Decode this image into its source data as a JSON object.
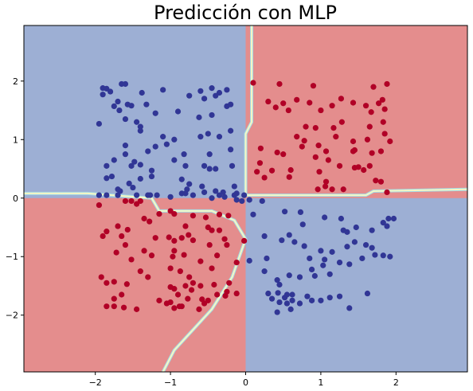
{
  "chart_data": {
    "type": "scatter",
    "title": "Predicción con MLP",
    "xlabel": "",
    "ylabel": "",
    "xlim": [
      -2.95,
      2.95
    ],
    "ylim": [
      -2.97,
      2.95
    ],
    "xticks": [
      -2,
      -1,
      0,
      1,
      2
    ],
    "yticks": [
      -2,
      -1,
      0,
      1,
      2
    ],
    "xtick_labels": [
      "−2",
      "−1",
      "0",
      "1",
      "2"
    ],
    "ytick_labels": [
      "−2",
      "−1",
      "0",
      "1",
      "2"
    ],
    "grid": false,
    "background_regions": {
      "red_class_region": [
        "x > 0 and y > 0 (top-right)",
        "x < 0 and y < 0 (bottom-left)"
      ],
      "blue_class_region": [
        "x < 0 and y > 0 (top-left)",
        "x > 0 and y < 0 (bottom-right)"
      ]
    },
    "colors": {
      "red_region": "#e48d8d",
      "blue_region": "#9dafd4",
      "red_point": "#b10026",
      "blue_point": "#313695",
      "boundary_light": "#f7f7c4",
      "boundary_cyan": "#a4dbe6"
    },
    "series": [
      {
        "name": "class_red",
        "points": [
          [
            0.1,
            1.97
          ],
          [
            0.45,
            1.95
          ],
          [
            0.9,
            1.92
          ],
          [
            1.7,
            1.9
          ],
          [
            1.88,
            1.95
          ],
          [
            0.3,
            1.65
          ],
          [
            0.5,
            1.62
          ],
          [
            0.68,
            1.68
          ],
          [
            0.85,
            1.63
          ],
          [
            1.27,
            1.7
          ],
          [
            1.43,
            1.63
          ],
          [
            1.6,
            1.58
          ],
          [
            1.77,
            1.62
          ],
          [
            1.82,
            1.68
          ],
          [
            0.4,
            1.55
          ],
          [
            0.57,
            1.5
          ],
          [
            1.0,
            1.5
          ],
          [
            1.15,
            1.58
          ],
          [
            1.67,
            1.47
          ],
          [
            1.85,
            1.52
          ],
          [
            1.28,
            1.3
          ],
          [
            0.8,
            1.22
          ],
          [
            0.93,
            1.2
          ],
          [
            1.17,
            1.2
          ],
          [
            1.65,
            1.22
          ],
          [
            1.83,
            1.3
          ],
          [
            0.68,
            1.05
          ],
          [
            0.78,
            0.98
          ],
          [
            1.2,
            1.05
          ],
          [
            1.62,
            1.0
          ],
          [
            1.85,
            1.1
          ],
          [
            1.92,
            0.97
          ],
          [
            0.75,
            0.88
          ],
          [
            0.97,
            0.9
          ],
          [
            1.43,
            0.97
          ],
          [
            0.2,
            0.85
          ],
          [
            0.42,
            0.78
          ],
          [
            0.5,
            0.75
          ],
          [
            1.07,
            0.8
          ],
          [
            1.43,
            0.8
          ],
          [
            1.45,
            0.82
          ],
          [
            1.68,
            0.77
          ],
          [
            1.8,
            0.8
          ],
          [
            0.93,
            0.7
          ],
          [
            1.1,
            0.65
          ],
          [
            0.19,
            0.6
          ],
          [
            1.25,
            0.55
          ],
          [
            1.45,
            0.52
          ],
          [
            1.65,
            0.55
          ],
          [
            1.5,
            0.53
          ],
          [
            1.57,
            0.48
          ],
          [
            0.15,
            0.45
          ],
          [
            0.35,
            0.47
          ],
          [
            0.6,
            0.48
          ],
          [
            0.98,
            0.45
          ],
          [
            0.25,
            0.35
          ],
          [
            0.58,
            0.36
          ],
          [
            1.07,
            0.28
          ],
          [
            1.73,
            0.3
          ],
          [
            1.8,
            0.28
          ],
          [
            1.06,
            0.2
          ],
          [
            0.96,
            0.15
          ],
          [
            1.15,
            0.15
          ],
          [
            1.3,
            0.15
          ],
          [
            1.88,
            0.1
          ],
          [
            -1.6,
            -0.05
          ],
          [
            -1.52,
            -0.05
          ],
          [
            -1.4,
            -0.05
          ],
          [
            -1.45,
            -0.1
          ],
          [
            -1.95,
            -0.12
          ],
          [
            -1.0,
            -0.22
          ],
          [
            -1.15,
            -0.27
          ],
          [
            -0.95,
            -0.27
          ],
          [
            -0.7,
            -0.3
          ],
          [
            -0.53,
            -0.33
          ],
          [
            -0.35,
            -0.28
          ],
          [
            -0.23,
            -0.3
          ],
          [
            -1.7,
            -0.48
          ],
          [
            -1.85,
            -0.57
          ],
          [
            -1.57,
            -0.54
          ],
          [
            -1.35,
            -0.35
          ],
          [
            -1.28,
            -0.4
          ],
          [
            -0.8,
            -0.48
          ],
          [
            -0.76,
            -0.63
          ],
          [
            -0.5,
            -0.5
          ],
          [
            -0.45,
            -0.55
          ],
          [
            -0.35,
            -0.55
          ],
          [
            -0.28,
            -0.7
          ],
          [
            -0.02,
            -0.73
          ],
          [
            -1.9,
            -0.65
          ],
          [
            -1.65,
            -0.65
          ],
          [
            -1.2,
            -0.68
          ],
          [
            -1.02,
            -0.67
          ],
          [
            -0.85,
            -0.68
          ],
          [
            -0.95,
            -0.73
          ],
          [
            -0.7,
            -0.72
          ],
          [
            -0.25,
            -0.8
          ],
          [
            -0.48,
            -0.8
          ],
          [
            -1.6,
            -0.8
          ],
          [
            -1.35,
            -0.9
          ],
          [
            -1.72,
            -0.93
          ],
          [
            -0.95,
            -0.9
          ],
          [
            -1.25,
            -0.98
          ],
          [
            -0.82,
            -0.97
          ],
          [
            -0.97,
            -1.0
          ],
          [
            -0.38,
            -0.98
          ],
          [
            -1.52,
            -1.05
          ],
          [
            -0.6,
            -1.08
          ],
          [
            -0.12,
            -1.1
          ],
          [
            -1.0,
            -1.2
          ],
          [
            -1.4,
            -1.25
          ],
          [
            -0.87,
            -1.25
          ],
          [
            -0.45,
            -1.2
          ],
          [
            -1.92,
            -1.35
          ],
          [
            -1.3,
            -1.35
          ],
          [
            -0.75,
            -1.35
          ],
          [
            -1.85,
            -1.45
          ],
          [
            -1.75,
            -1.43
          ],
          [
            -1.58,
            -1.47
          ],
          [
            -0.7,
            -1.45
          ],
          [
            -0.22,
            -1.45
          ],
          [
            -0.42,
            -1.48
          ],
          [
            -0.8,
            -1.5
          ],
          [
            -0.6,
            -1.5
          ],
          [
            -0.95,
            -1.55
          ],
          [
            -1.0,
            -1.52
          ],
          [
            -0.72,
            -1.57
          ],
          [
            -0.12,
            -1.63
          ],
          [
            -0.27,
            -1.67
          ],
          [
            -0.77,
            -1.72
          ],
          [
            -1.75,
            -1.72
          ],
          [
            -1.65,
            -1.65
          ],
          [
            -1.15,
            -1.75
          ],
          [
            -0.9,
            -1.65
          ],
          [
            -0.38,
            -1.65
          ],
          [
            -0.58,
            -1.73
          ],
          [
            -1.85,
            -1.85
          ],
          [
            -1.75,
            -1.85
          ],
          [
            -0.85,
            -1.85
          ],
          [
            -1.45,
            -1.9
          ],
          [
            -1.62,
            -1.87
          ],
          [
            -0.88,
            -1.85
          ],
          [
            -0.95,
            -1.88
          ],
          [
            -0.55,
            -1.8
          ],
          [
            -0.5,
            -1.75
          ],
          [
            -0.62,
            -1.9
          ],
          [
            -1.0,
            -1.78
          ],
          [
            -0.25,
            -1.6
          ],
          [
            -1.05,
            -1.8
          ]
        ]
      },
      {
        "name": "class_blue",
        "points": [
          [
            -1.9,
            1.88
          ],
          [
            -1.85,
            1.87
          ],
          [
            -1.8,
            1.82
          ],
          [
            -1.65,
            1.95
          ],
          [
            -1.6,
            1.95
          ],
          [
            -1.38,
            1.8
          ],
          [
            -1.1,
            1.85
          ],
          [
            -0.6,
            1.83
          ],
          [
            -0.45,
            1.88
          ],
          [
            -0.35,
            1.8
          ],
          [
            -0.25,
            1.85
          ],
          [
            -0.75,
            1.75
          ],
          [
            -0.55,
            1.7
          ],
          [
            -0.4,
            1.75
          ],
          [
            -0.2,
            1.6
          ],
          [
            -1.9,
            1.77
          ],
          [
            -1.7,
            1.65
          ],
          [
            -1.75,
            1.57
          ],
          [
            -1.52,
            1.58
          ],
          [
            -1.57,
            1.6
          ],
          [
            -1.32,
            1.6
          ],
          [
            -1.2,
            1.45
          ],
          [
            -0.9,
            1.48
          ],
          [
            -0.62,
            1.38
          ],
          [
            -0.45,
            1.42
          ],
          [
            -0.25,
            1.57
          ],
          [
            -1.68,
            1.5
          ],
          [
            -1.6,
            1.35
          ],
          [
            -1.45,
            1.3
          ],
          [
            -1.95,
            1.27
          ],
          [
            -1.4,
            1.22
          ],
          [
            -0.2,
            1.15
          ],
          [
            -0.6,
            1.05
          ],
          [
            -0.35,
            1.05
          ],
          [
            -0.5,
            1.1
          ],
          [
            -1.05,
            0.92
          ],
          [
            -0.95,
            1.0
          ],
          [
            -1.2,
            0.88
          ],
          [
            -1.3,
            0.8
          ],
          [
            -1.6,
            0.9
          ],
          [
            -1.4,
            1.15
          ],
          [
            -1.1,
            1.05
          ],
          [
            -0.2,
            0.83
          ],
          [
            -0.48,
            0.75
          ],
          [
            -0.82,
            0.75
          ],
          [
            -1.6,
            0.75
          ],
          [
            -1.48,
            0.62
          ],
          [
            -1.4,
            0.57
          ],
          [
            -1.52,
            0.55
          ],
          [
            -1.75,
            0.65
          ],
          [
            -1.85,
            0.55
          ],
          [
            -1.25,
            0.47
          ],
          [
            -0.95,
            0.65
          ],
          [
            -0.8,
            0.55
          ],
          [
            -0.55,
            0.55
          ],
          [
            -0.48,
            0.5
          ],
          [
            -0.4,
            0.5
          ],
          [
            -0.18,
            0.55
          ],
          [
            -1.85,
            0.34
          ],
          [
            -1.78,
            0.37
          ],
          [
            -1.4,
            0.33
          ],
          [
            -1.25,
            0.37
          ],
          [
            -1.55,
            0.25
          ],
          [
            -1.27,
            0.05
          ],
          [
            -0.85,
            0.32
          ],
          [
            -0.75,
            0.24
          ],
          [
            -0.78,
            0.15
          ],
          [
            -0.58,
            0.2
          ],
          [
            -0.4,
            0.12
          ],
          [
            -0.3,
            0.1
          ],
          [
            -1.67,
            0.12
          ],
          [
            -1.7,
            0.15
          ],
          [
            -1.5,
            0.18
          ],
          [
            -1.45,
            0.05
          ],
          [
            -1.3,
            0.05
          ],
          [
            -1.18,
            0.05
          ],
          [
            -1.7,
            0.05
          ],
          [
            -1.85,
            0.05
          ],
          [
            -1.95,
            0.05
          ],
          [
            -1.0,
            0.02
          ],
          [
            -0.85,
            0.08
          ],
          [
            -0.7,
            0.05
          ],
          [
            -0.55,
            0.1
          ],
          [
            -0.45,
            0.0
          ],
          [
            -0.35,
            0.05
          ],
          [
            -0.15,
            0.05
          ],
          [
            -0.8,
            0.08
          ],
          [
            -0.28,
            0.02
          ],
          [
            -0.12,
            0.08
          ],
          [
            -0.15,
            0.2
          ],
          [
            -0.12,
            -0.03
          ],
          [
            -0.05,
            -0.05
          ],
          [
            0.05,
            -0.03
          ],
          [
            -0.02,
            0.05
          ],
          [
            0.22,
            -0.05
          ],
          [
            0.1,
            -0.28
          ],
          [
            0.52,
            -0.23
          ],
          [
            0.73,
            -0.24
          ],
          [
            0.76,
            -0.45
          ],
          [
            1.05,
            -0.33
          ],
          [
            1.27,
            -0.35
          ],
          [
            1.3,
            -0.55
          ],
          [
            1.35,
            -0.58
          ],
          [
            1.47,
            -0.5
          ],
          [
            1.68,
            -0.55
          ],
          [
            1.83,
            -0.42
          ],
          [
            1.88,
            -0.48
          ],
          [
            1.9,
            -0.35
          ],
          [
            1.97,
            -0.35
          ],
          [
            0.25,
            -0.65
          ],
          [
            0.48,
            -0.72
          ],
          [
            0.58,
            -0.63
          ],
          [
            0.65,
            -0.75
          ],
          [
            0.78,
            -0.82
          ],
          [
            1.0,
            -0.9
          ],
          [
            1.15,
            -0.92
          ],
          [
            1.35,
            -0.83
          ],
          [
            1.45,
            -0.75
          ],
          [
            1.6,
            -0.8
          ],
          [
            1.68,
            -0.85
          ],
          [
            1.83,
            -0.98
          ],
          [
            1.92,
            -1.0
          ],
          [
            0.05,
            -1.07
          ],
          [
            0.28,
            -1.03
          ],
          [
            0.85,
            -1.03
          ],
          [
            1.05,
            -1.05
          ],
          [
            1.25,
            -1.1
          ],
          [
            1.38,
            -1.13
          ],
          [
            1.55,
            -1.03
          ],
          [
            1.72,
            -0.97
          ],
          [
            0.25,
            -1.25
          ],
          [
            0.42,
            -1.4
          ],
          [
            0.58,
            -1.32
          ],
          [
            0.72,
            -1.35
          ],
          [
            0.92,
            -1.33
          ],
          [
            1.12,
            -1.3
          ],
          [
            0.45,
            -1.48
          ],
          [
            0.88,
            -1.22
          ],
          [
            1.03,
            -1.15
          ],
          [
            0.3,
            -1.63
          ],
          [
            0.43,
            -1.62
          ],
          [
            0.55,
            -1.65
          ],
          [
            0.62,
            -1.65
          ],
          [
            0.82,
            -1.68
          ],
          [
            1.12,
            -1.7
          ],
          [
            1.25,
            -1.68
          ],
          [
            1.62,
            -1.63
          ],
          [
            0.35,
            -1.72
          ],
          [
            0.45,
            -1.78
          ],
          [
            0.55,
            -1.8
          ],
          [
            0.72,
            -1.8
          ],
          [
            0.6,
            -1.9
          ],
          [
            0.42,
            -1.95
          ],
          [
            0.88,
            -1.75
          ],
          [
            1.0,
            -1.75
          ],
          [
            1.38,
            -1.88
          ],
          [
            0.62,
            -1.75
          ],
          [
            0.52,
            -1.7
          ]
        ]
      }
    ]
  }
}
